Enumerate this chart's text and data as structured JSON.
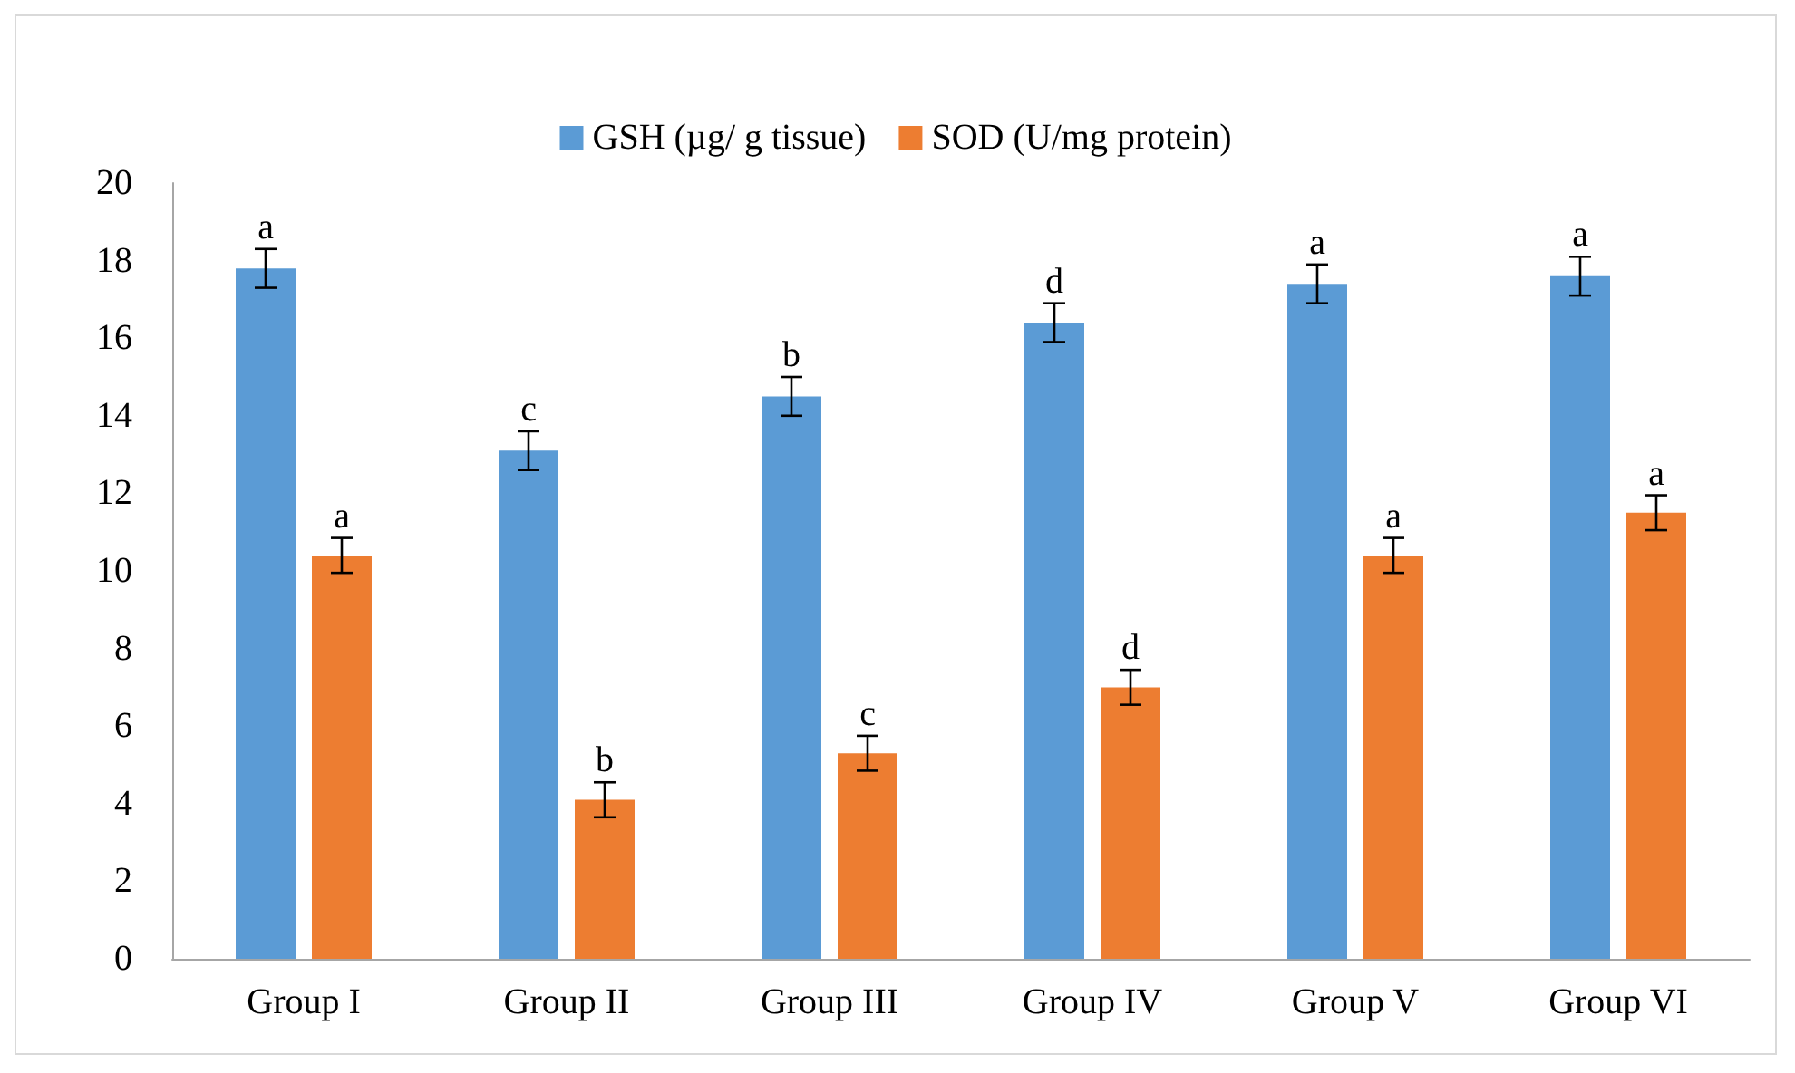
{
  "chart_data": {
    "type": "bar",
    "categories": [
      "Group I",
      "Group II",
      "Group III",
      "Group IV",
      "Group V",
      "Group VI"
    ],
    "series": [
      {
        "name": "GSH (µg/ g tissue)",
        "color": "#5b9bd5",
        "values": [
          17.8,
          13.1,
          14.5,
          16.4,
          17.4,
          17.6
        ],
        "errors": [
          0.5,
          0.5,
          0.5,
          0.5,
          0.5,
          0.5
        ]
      },
      {
        "name": "SOD (U/mg protein)",
        "color": "#ed7d31",
        "values": [
          10.4,
          4.1,
          5.3,
          7.0,
          10.4,
          11.5
        ],
        "errors": [
          0.45,
          0.45,
          0.45,
          0.45,
          0.45,
          0.45
        ]
      }
    ],
    "annotations": [
      {
        "text": "a",
        "x": "Group I",
        "y": 17.8
      },
      {
        "text": "a",
        "x": "Group I",
        "y": 10.4
      },
      {
        "text": "c",
        "x": "Group II",
        "y": 13.1
      },
      {
        "text": "b",
        "x": "Group II",
        "y": 4.1
      },
      {
        "text": "b",
        "x": "Group III",
        "y": 14.5
      },
      {
        "text": "c",
        "x": "Group III",
        "y": 5.3
      },
      {
        "text": "d",
        "x": "Group IV",
        "y": 16.4
      },
      {
        "text": "d",
        "x": "Group IV",
        "y": 7.0
      },
      {
        "text": "a",
        "x": "Group V",
        "y": 17.4
      },
      {
        "text": "a",
        "x": "Group V",
        "y": 10.4
      },
      {
        "text": "a",
        "x": "Group VI",
        "y": 17.6
      },
      {
        "text": "a",
        "x": "Group VI",
        "y": 11.5
      }
    ],
    "ylim": [
      0,
      20
    ],
    "yticks": [
      0,
      2,
      4,
      6,
      8,
      10,
      12,
      14,
      16,
      18,
      20
    ],
    "grid": false,
    "legend": "top"
  }
}
